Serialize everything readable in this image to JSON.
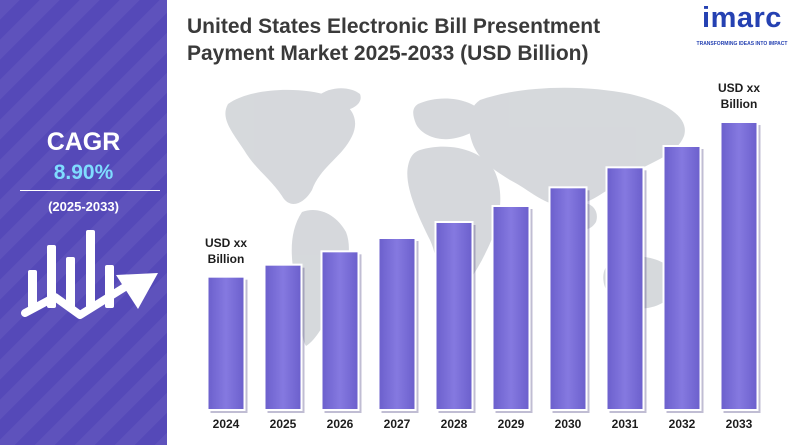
{
  "sidebar": {
    "cagr_label": "CAGR",
    "cagr_value": "8.90%",
    "cagr_period": "(2025-2033)",
    "accent_color": "#5549b8",
    "value_color": "#7fdcff",
    "icon": "growth-chart-arrow-icon"
  },
  "logo": {
    "word": "imarc",
    "tagline": "TRANSFORMING IDEAS INTO IMPACT",
    "color": "#2541b2"
  },
  "chart_data": {
    "type": "bar",
    "title": "United States Electronic Bill Presentment Payment Market 2025-2033 (USD Billion)",
    "categories": [
      "2024",
      "2025",
      "2026",
      "2027",
      "2028",
      "2029",
      "2030",
      "2031",
      "2032",
      "2033"
    ],
    "values": [
      1.0,
      1.09,
      1.19,
      1.29,
      1.41,
      1.53,
      1.67,
      1.82,
      1.98,
      2.16
    ],
    "annotations": [
      {
        "category": "2024",
        "text_line1": "USD xx",
        "text_line2": "Billion"
      },
      {
        "category": "2033",
        "text_line1": "USD xx",
        "text_line2": "Billion"
      }
    ],
    "bar_color": "#7a6fd8",
    "background_art": "world-map",
    "grid": false,
    "legend": "none"
  }
}
